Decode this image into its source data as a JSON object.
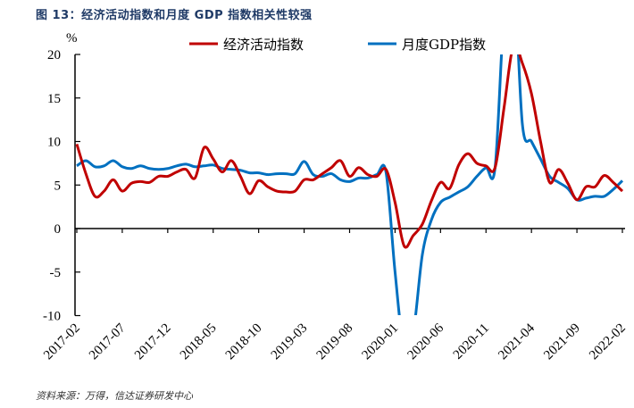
{
  "title": "图 13：经济活动指数和月度 GDP 指数相关性较强",
  "source": "资料来源：万得，信达证券研发中心",
  "chart_data": {
    "type": "line",
    "title": "图 13：经济活动指数和月度 GDP 指数相关性较强",
    "ylabel": "%",
    "ylim": [
      -10,
      20
    ],
    "yticks": [
      20,
      15,
      10,
      5,
      0,
      -5,
      -10
    ],
    "legend": "top",
    "grid": false,
    "x": [
      "2017-02",
      "2017-03",
      "2017-04",
      "2017-05",
      "2017-06",
      "2017-07",
      "2017-08",
      "2017-09",
      "2017-10",
      "2017-11",
      "2017-12",
      "2018-01",
      "2018-02",
      "2018-03",
      "2018-04",
      "2018-05",
      "2018-06",
      "2018-07",
      "2018-08",
      "2018-09",
      "2018-10",
      "2018-11",
      "2018-12",
      "2019-01",
      "2019-02",
      "2019-03",
      "2019-04",
      "2019-05",
      "2019-06",
      "2019-07",
      "2019-08",
      "2019-09",
      "2019-10",
      "2019-11",
      "2019-12",
      "2020-01",
      "2020-02",
      "2020-03",
      "2020-04",
      "2020-05",
      "2020-06",
      "2020-07",
      "2020-08",
      "2020-09",
      "2020-10",
      "2020-11",
      "2020-12",
      "2021-01",
      "2021-02",
      "2021-03",
      "2021-04",
      "2021-05",
      "2021-06",
      "2021-07",
      "2021-08",
      "2021-09",
      "2021-10",
      "2021-11",
      "2021-12",
      "2022-01",
      "2022-02"
    ],
    "xticklabels": [
      "2017-02",
      "2017-07",
      "2017-12",
      "2018-05",
      "2018-10",
      "2019-03",
      "2019-08",
      "2020-01",
      "2020-06",
      "2020-11",
      "2021-04",
      "2021-09",
      "2022-02"
    ],
    "series": [
      {
        "name": "经济活动指数",
        "color": "#c00000",
        "values": [
          9.7,
          6.3,
          3.7,
          4.3,
          5.6,
          4.3,
          5.2,
          5.4,
          5.3,
          6.0,
          6.0,
          6.5,
          6.8,
          5.8,
          9.3,
          8.0,
          6.5,
          7.8,
          6.0,
          4.0,
          5.5,
          4.8,
          4.3,
          4.2,
          4.3,
          5.6,
          5.6,
          6.3,
          7.0,
          7.8,
          6.0,
          7.0,
          6.2,
          6.0,
          6.8,
          3.0,
          -2.0,
          -0.8,
          0.5,
          3.2,
          5.3,
          4.6,
          7.3,
          8.6,
          7.5,
          7.2,
          7.0,
          14.0,
          21.0,
          19.0,
          15.5,
          10.0,
          5.3,
          6.8,
          5.2,
          3.3,
          4.8,
          4.8,
          6.1,
          5.3,
          4.3
        ]
      },
      {
        "name": "月度GDP指数",
        "color": "#0070c0",
        "values": [
          7.2,
          7.8,
          7.1,
          7.2,
          7.8,
          7.1,
          6.9,
          7.2,
          6.9,
          6.8,
          6.9,
          7.2,
          7.4,
          7.1,
          7.2,
          7.3,
          6.9,
          6.8,
          6.7,
          6.4,
          6.4,
          6.2,
          6.3,
          6.3,
          6.3,
          7.7,
          6.2,
          6.0,
          6.3,
          5.6,
          5.4,
          5.8,
          5.8,
          6.2,
          6.5,
          -5.0,
          -14.0,
          -12.0,
          -3.0,
          1.0,
          3.0,
          3.6,
          4.2,
          4.8,
          6.0,
          7.0,
          7.0,
          25.0,
          30.0,
          12.0,
          10.0,
          8.0,
          6.0,
          5.3,
          4.6,
          3.3,
          3.5,
          3.7,
          3.7,
          4.5,
          5.5
        ]
      }
    ]
  }
}
